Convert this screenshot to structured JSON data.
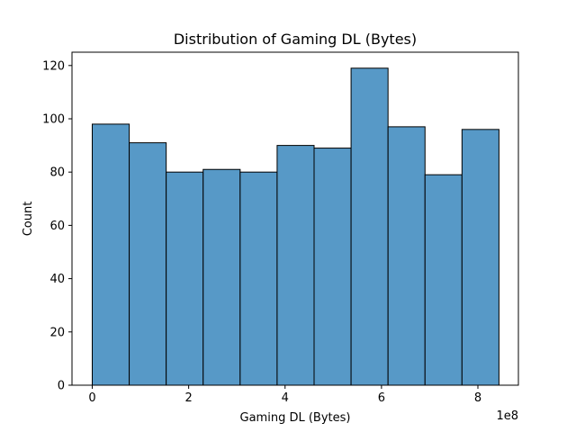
{
  "chart_data": {
    "type": "bar",
    "title": "Distribution of Gaming DL (Bytes)",
    "xlabel": "Gaming DL (Bytes)",
    "ylabel": "Count",
    "x_offset_label": "1e8",
    "x_ticks": [
      0,
      2,
      4,
      6,
      8
    ],
    "x_tick_labels": [
      "0",
      "2",
      "4",
      "6",
      "8"
    ],
    "y_ticks": [
      0,
      20,
      40,
      60,
      80,
      100,
      120
    ],
    "y_tick_labels": [
      "0",
      "20",
      "40",
      "60",
      "80",
      "100",
      "120"
    ],
    "xlim": [
      -0.42,
      8.84
    ],
    "ylim": [
      0,
      125
    ],
    "bin_edges": [
      0.0,
      0.767,
      1.534,
      2.301,
      3.068,
      3.835,
      4.602,
      5.369,
      6.136,
      6.903,
      7.67,
      8.437
    ],
    "values": [
      98,
      91,
      80,
      81,
      80,
      90,
      89,
      119,
      97,
      79,
      96
    ],
    "bar_color": "#5799c7",
    "edge_color": "#000000",
    "grid": false
  }
}
